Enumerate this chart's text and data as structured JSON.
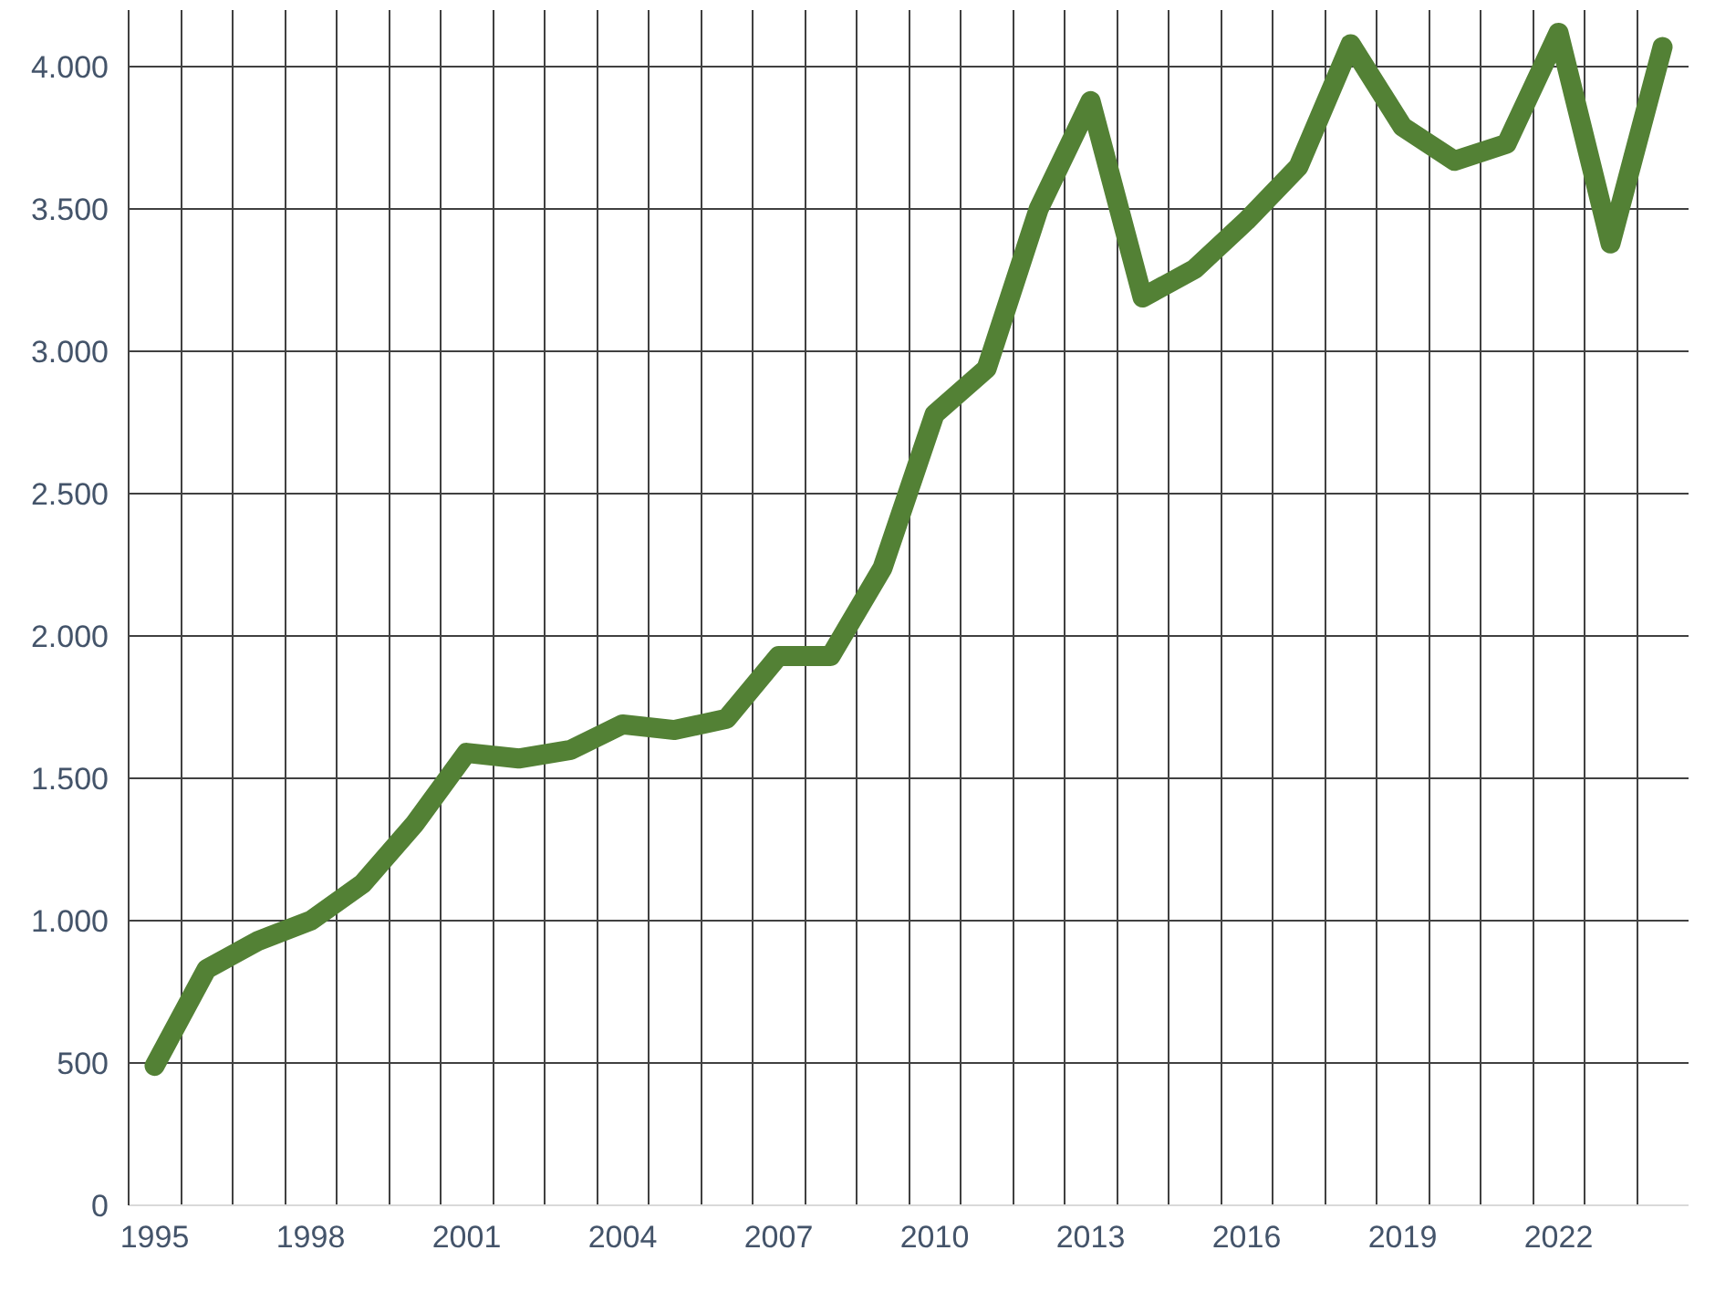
{
  "chart_data": {
    "type": "line",
    "categories": [
      "1995",
      null,
      null,
      "1998",
      null,
      null,
      "2001",
      null,
      null,
      "2004",
      null,
      null,
      "2007",
      null,
      null,
      "2010",
      null,
      null,
      "2013",
      null,
      null,
      "2016",
      null,
      null,
      "2019",
      null,
      null,
      "2022",
      null,
      null
    ],
    "series": [
      {
        "color": "#538135",
        "values": [
          490,
          830,
          930,
          1000,
          1130,
          1340,
          1590,
          1570,
          1600,
          1690,
          1670,
          1710,
          1930,
          1930,
          2240,
          2780,
          2940,
          3500,
          3880,
          3190,
          3290,
          3460,
          3650,
          4080,
          3790,
          3670,
          3730,
          4120,
          3380,
          4070
        ]
      }
    ],
    "ylim": [
      0,
      4200
    ],
    "yticks": [
      0,
      500,
      {
        "value": 1000,
        "label": "1.000"
      },
      {
        "value": 1500,
        "label": "1.500"
      },
      {
        "value": 2000,
        "label": "2.000"
      },
      {
        "value": 2500,
        "label": "2.500"
      },
      {
        "value": 3000,
        "label": "3.000"
      },
      {
        "value": 3500,
        "label": "3.500"
      },
      {
        "value": 4000,
        "label": "4.000"
      }
    ],
    "grid": true,
    "line_style": "solid"
  }
}
